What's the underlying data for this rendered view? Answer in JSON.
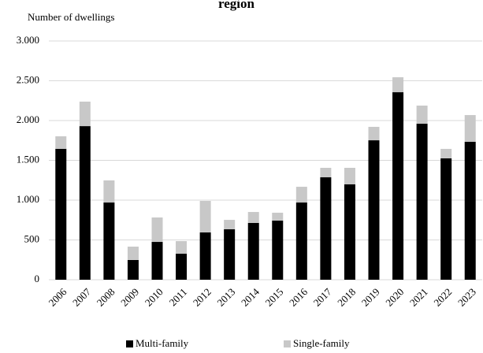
{
  "chart_data": {
    "type": "stacked_bar",
    "title": "region",
    "ylabel": "Number of dwellings",
    "categories": [
      "2006",
      "2007",
      "2008",
      "2009",
      "2010",
      "2011",
      "2012",
      "2013",
      "2014",
      "2015",
      "2016",
      "2017",
      "2018",
      "2019",
      "2020",
      "2021",
      "2022",
      "2023"
    ],
    "series": [
      {
        "name": "Multi-family",
        "color": "#000000",
        "values": [
          1645,
          1930,
          970,
          248,
          475,
          327,
          594,
          634,
          713,
          743,
          970,
          1287,
          1198,
          1752,
          2356,
          1960,
          1525,
          1733
        ]
      },
      {
        "name": "Single-family",
        "color": "#c8c8c8",
        "values": [
          157,
          308,
          278,
          168,
          307,
          158,
          396,
          118,
          138,
          99,
          198,
          119,
          208,
          169,
          188,
          228,
          119,
          336
        ]
      }
    ],
    "ylim": [
      0,
      3000
    ],
    "yticks": [
      0,
      500,
      {
        "value": 1000,
        "label": "1.000"
      },
      {
        "value": 1500,
        "label": "1.500"
      },
      {
        "value": 2000,
        "label": "2.000"
      },
      {
        "value": 2500,
        "label": "2.500"
      },
      {
        "value": 3000,
        "label": "3.000"
      }
    ],
    "grid": true,
    "legend": "bottom"
  }
}
